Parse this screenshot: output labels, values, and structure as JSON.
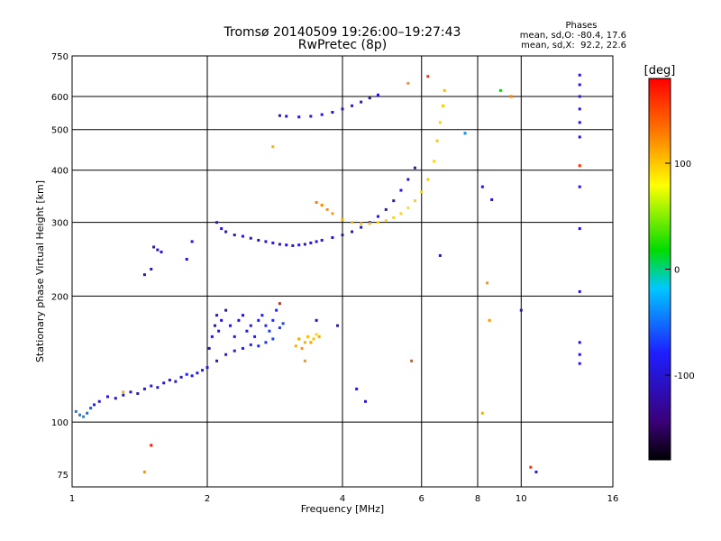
{
  "chart_data": {
    "type": "scatter",
    "title": "Tromsø 20140509 19:26:00–19:27:43",
    "subtitle": "RwPretec (8p)",
    "xlabel": "Frequency [MHz]",
    "ylabel": "Stationary phase Virtual Height [km]",
    "xscale": "log",
    "yscale": "log",
    "xlim": [
      1,
      16
    ],
    "ylim": [
      70,
      750
    ],
    "xticks": [
      1,
      2,
      4,
      6,
      8,
      10,
      16
    ],
    "yticks": [
      75,
      100,
      200,
      300,
      400,
      500,
      600,
      750
    ],
    "grid": true,
    "phases_box": {
      "title": "Phases",
      "line_o": "mean, sd,O: -80.4, 17.6",
      "line_x": "mean, sd,X:  92.2, 22.6"
    },
    "colorbar": {
      "label": "[deg]",
      "range": [
        -180,
        180
      ],
      "ticks": [
        100,
        0,
        -100
      ],
      "colormap": "rainbow",
      "colors": [
        "#000000",
        "#3a0078",
        "#1e1eff",
        "#00c8ff",
        "#00dc00",
        "#ffff00",
        "#ff7800",
        "#ff0000"
      ]
    },
    "series": [
      {
        "points": [
          {
            "x": 1.02,
            "y": 106,
            "p": -45
          },
          {
            "x": 1.04,
            "y": 104,
            "p": -45
          },
          {
            "x": 1.06,
            "y": 103,
            "p": -40
          },
          {
            "x": 1.08,
            "y": 105,
            "p": -50
          },
          {
            "x": 1.1,
            "y": 108,
            "p": -60
          },
          {
            "x": 1.12,
            "y": 110,
            "p": -80
          },
          {
            "x": 1.15,
            "y": 112,
            "p": -90
          },
          {
            "x": 1.2,
            "y": 115,
            "p": -95
          },
          {
            "x": 1.25,
            "y": 114,
            "p": -100
          },
          {
            "x": 1.3,
            "y": 116,
            "p": -95
          },
          {
            "x": 1.35,
            "y": 118,
            "p": -100
          },
          {
            "x": 1.4,
            "y": 117,
            "p": -95
          },
          {
            "x": 1.45,
            "y": 120,
            "p": -100
          },
          {
            "x": 1.5,
            "y": 122,
            "p": -95
          },
          {
            "x": 1.55,
            "y": 121,
            "p": -90
          },
          {
            "x": 1.6,
            "y": 124,
            "p": -95
          },
          {
            "x": 1.65,
            "y": 126,
            "p": -100
          },
          {
            "x": 1.7,
            "y": 125,
            "p": -95
          },
          {
            "x": 1.75,
            "y": 128,
            "p": -90
          },
          {
            "x": 1.8,
            "y": 130,
            "p": -85
          },
          {
            "x": 1.85,
            "y": 129,
            "p": -80
          },
          {
            "x": 1.9,
            "y": 131,
            "p": -85
          },
          {
            "x": 1.95,
            "y": 133,
            "p": -90
          },
          {
            "x": 2.0,
            "y": 135,
            "p": -95
          },
          {
            "x": 2.1,
            "y": 140,
            "p": -100
          },
          {
            "x": 2.2,
            "y": 145,
            "p": -95
          },
          {
            "x": 2.3,
            "y": 148,
            "p": -90
          },
          {
            "x": 2.4,
            "y": 150,
            "p": -85
          },
          {
            "x": 2.5,
            "y": 153,
            "p": -80
          },
          {
            "x": 2.6,
            "y": 152,
            "p": -75
          },
          {
            "x": 2.7,
            "y": 155,
            "p": -70
          },
          {
            "x": 2.8,
            "y": 158,
            "p": -65
          }
        ]
      },
      {
        "points": [
          {
            "x": 2.02,
            "y": 150,
            "p": -110
          },
          {
            "x": 2.05,
            "y": 160,
            "p": -105
          },
          {
            "x": 2.08,
            "y": 170,
            "p": -110
          },
          {
            "x": 2.1,
            "y": 180,
            "p": -100
          },
          {
            "x": 2.12,
            "y": 165,
            "p": -95
          },
          {
            "x": 2.15,
            "y": 175,
            "p": -105
          },
          {
            "x": 2.2,
            "y": 185,
            "p": -110
          },
          {
            "x": 2.25,
            "y": 170,
            "p": -100
          },
          {
            "x": 2.3,
            "y": 160,
            "p": -95
          },
          {
            "x": 2.35,
            "y": 175,
            "p": -105
          },
          {
            "x": 2.4,
            "y": 180,
            "p": -100
          },
          {
            "x": 2.45,
            "y": 165,
            "p": -90
          },
          {
            "x": 2.5,
            "y": 170,
            "p": -85
          },
          {
            "x": 2.55,
            "y": 160,
            "p": -80
          },
          {
            "x": 2.6,
            "y": 175,
            "p": -85
          },
          {
            "x": 2.65,
            "y": 180,
            "p": -80
          },
          {
            "x": 2.7,
            "y": 170,
            "p": -75
          },
          {
            "x": 2.75,
            "y": 165,
            "p": -70
          },
          {
            "x": 2.8,
            "y": 175,
            "p": -75
          },
          {
            "x": 2.85,
            "y": 185,
            "p": -80
          },
          {
            "x": 2.9,
            "y": 168,
            "p": -70
          },
          {
            "x": 2.95,
            "y": 172,
            "p": -65
          }
        ]
      },
      {
        "points": [
          {
            "x": 3.15,
            "y": 152,
            "p": 110
          },
          {
            "x": 3.2,
            "y": 158,
            "p": 115
          },
          {
            "x": 3.25,
            "y": 150,
            "p": 120
          },
          {
            "x": 3.3,
            "y": 155,
            "p": 110
          },
          {
            "x": 3.35,
            "y": 160,
            "p": 105
          },
          {
            "x": 3.4,
            "y": 155,
            "p": 115
          },
          {
            "x": 3.45,
            "y": 158,
            "p": 100
          },
          {
            "x": 3.5,
            "y": 162,
            "p": 95
          },
          {
            "x": 3.55,
            "y": 160,
            "p": 110
          }
        ]
      },
      {
        "points": [
          {
            "x": 2.1,
            "y": 300,
            "p": -95
          },
          {
            "x": 2.15,
            "y": 290,
            "p": -100
          },
          {
            "x": 2.2,
            "y": 285,
            "p": -105
          },
          {
            "x": 2.3,
            "y": 280,
            "p": -100
          },
          {
            "x": 2.4,
            "y": 278,
            "p": -95
          },
          {
            "x": 2.5,
            "y": 275,
            "p": -100
          },
          {
            "x": 2.6,
            "y": 272,
            "p": -105
          },
          {
            "x": 2.7,
            "y": 270,
            "p": -100
          },
          {
            "x": 2.8,
            "y": 268,
            "p": -95
          },
          {
            "x": 2.9,
            "y": 266,
            "p": -100
          },
          {
            "x": 3.0,
            "y": 265,
            "p": -105
          },
          {
            "x": 3.1,
            "y": 264,
            "p": -100
          },
          {
            "x": 3.2,
            "y": 265,
            "p": -95
          },
          {
            "x": 3.3,
            "y": 266,
            "p": -100
          },
          {
            "x": 3.4,
            "y": 268,
            "p": -105
          },
          {
            "x": 3.5,
            "y": 270,
            "p": -100
          },
          {
            "x": 3.6,
            "y": 272,
            "p": -95
          },
          {
            "x": 3.8,
            "y": 276,
            "p": -100
          },
          {
            "x": 4.0,
            "y": 280,
            "p": -100
          },
          {
            "x": 4.2,
            "y": 285,
            "p": -105
          },
          {
            "x": 4.4,
            "y": 292,
            "p": -100
          },
          {
            "x": 4.6,
            "y": 300,
            "p": -95
          },
          {
            "x": 4.8,
            "y": 310,
            "p": -100
          },
          {
            "x": 5.0,
            "y": 322,
            "p": -105
          },
          {
            "x": 5.2,
            "y": 338,
            "p": -100
          },
          {
            "x": 5.4,
            "y": 358,
            "p": -95
          },
          {
            "x": 5.6,
            "y": 380,
            "p": -100
          },
          {
            "x": 5.8,
            "y": 405,
            "p": -105
          }
        ]
      },
      {
        "points": [
          {
            "x": 3.5,
            "y": 335,
            "p": 130
          },
          {
            "x": 3.6,
            "y": 330,
            "p": 125
          },
          {
            "x": 3.7,
            "y": 322,
            "p": 120
          },
          {
            "x": 3.8,
            "y": 315,
            "p": 115
          },
          {
            "x": 4.0,
            "y": 305,
            "p": 110
          },
          {
            "x": 4.2,
            "y": 300,
            "p": 105
          },
          {
            "x": 4.4,
            "y": 298,
            "p": 100
          },
          {
            "x": 4.6,
            "y": 298,
            "p": 100
          },
          {
            "x": 4.8,
            "y": 300,
            "p": 95
          },
          {
            "x": 5.0,
            "y": 303,
            "p": 95
          },
          {
            "x": 5.2,
            "y": 308,
            "p": 95
          },
          {
            "x": 5.4,
            "y": 315,
            "p": 95
          },
          {
            "x": 5.6,
            "y": 325,
            "p": 90
          },
          {
            "x": 5.8,
            "y": 338,
            "p": 95
          },
          {
            "x": 6.0,
            "y": 355,
            "p": 95
          },
          {
            "x": 6.2,
            "y": 380,
            "p": 100
          },
          {
            "x": 6.4,
            "y": 420,
            "p": 95
          },
          {
            "x": 6.5,
            "y": 470,
            "p": 100
          },
          {
            "x": 6.6,
            "y": 520,
            "p": 95
          },
          {
            "x": 6.7,
            "y": 570,
            "p": 100
          },
          {
            "x": 6.75,
            "y": 620,
            "p": 105
          }
        ]
      },
      {
        "points": [
          {
            "x": 2.9,
            "y": 540,
            "p": -100
          },
          {
            "x": 3.0,
            "y": 538,
            "p": -105
          },
          {
            "x": 3.2,
            "y": 536,
            "p": -100
          },
          {
            "x": 3.4,
            "y": 538,
            "p": -95
          },
          {
            "x": 3.6,
            "y": 543,
            "p": -100
          },
          {
            "x": 3.8,
            "y": 550,
            "p": -105
          },
          {
            "x": 4.0,
            "y": 560,
            "p": -100
          },
          {
            "x": 4.2,
            "y": 570,
            "p": -95
          },
          {
            "x": 4.4,
            "y": 582,
            "p": -100
          },
          {
            "x": 4.6,
            "y": 595,
            "p": -105
          },
          {
            "x": 4.8,
            "y": 605,
            "p": -100
          }
        ]
      },
      {
        "points": [
          {
            "x": 1.45,
            "y": 225,
            "p": -105
          },
          {
            "x": 1.5,
            "y": 232,
            "p": -100
          },
          {
            "x": 1.52,
            "y": 262,
            "p": -100
          },
          {
            "x": 1.55,
            "y": 258,
            "p": -105
          },
          {
            "x": 1.58,
            "y": 255,
            "p": -100
          }
        ]
      },
      {
        "points": [
          {
            "x": 13.5,
            "y": 675,
            "p": -100
          },
          {
            "x": 13.5,
            "y": 640,
            "p": -105
          },
          {
            "x": 13.5,
            "y": 600,
            "p": -100
          },
          {
            "x": 13.5,
            "y": 560,
            "p": -95
          },
          {
            "x": 13.5,
            "y": 520,
            "p": -100
          },
          {
            "x": 13.5,
            "y": 480,
            "p": -105
          },
          {
            "x": 13.5,
            "y": 410,
            "p": 160
          },
          {
            "x": 13.5,
            "y": 365,
            "p": -100
          },
          {
            "x": 13.5,
            "y": 290,
            "p": -105
          },
          {
            "x": 13.5,
            "y": 205,
            "p": -100
          },
          {
            "x": 13.5,
            "y": 155,
            "p": -105
          },
          {
            "x": 13.5,
            "y": 145,
            "p": -100
          },
          {
            "x": 13.5,
            "y": 138,
            "p": -95
          }
        ]
      },
      {
        "points": [
          {
            "x": 1.5,
            "y": 88,
            "p": 170
          },
          {
            "x": 1.45,
            "y": 76,
            "p": 120
          },
          {
            "x": 8.2,
            "y": 105,
            "p": 110
          },
          {
            "x": 10.5,
            "y": 78,
            "p": 160
          },
          {
            "x": 10.8,
            "y": 76,
            "p": -100
          },
          {
            "x": 8.4,
            "y": 215,
            "p": 120
          },
          {
            "x": 10.0,
            "y": 185,
            "p": -100
          },
          {
            "x": 8.5,
            "y": 175,
            "p": 120
          },
          {
            "x": 8.2,
            "y": 365,
            "p": -100
          },
          {
            "x": 8.6,
            "y": 340,
            "p": -105
          },
          {
            "x": 9.0,
            "y": 620,
            "p": 20
          },
          {
            "x": 9.5,
            "y": 600,
            "p": 130
          },
          {
            "x": 7.5,
            "y": 490,
            "p": -40
          },
          {
            "x": 6.6,
            "y": 250,
            "p": -100
          },
          {
            "x": 6.2,
            "y": 670,
            "p": 160
          },
          {
            "x": 5.6,
            "y": 645,
            "p": 120
          },
          {
            "x": 3.9,
            "y": 170,
            "p": -100
          },
          {
            "x": 2.8,
            "y": 455,
            "p": 110
          },
          {
            "x": 1.8,
            "y": 245,
            "p": -100
          },
          {
            "x": 1.85,
            "y": 270,
            "p": -95
          },
          {
            "x": 2.9,
            "y": 192,
            "p": 170
          },
          {
            "x": 3.5,
            "y": 175,
            "p": -120
          },
          {
            "x": 3.3,
            "y": 140,
            "p": 120
          },
          {
            "x": 4.3,
            "y": 120,
            "p": -100
          },
          {
            "x": 5.7,
            "y": 140,
            "p": 150
          },
          {
            "x": 4.5,
            "y": 112,
            "p": -100
          },
          {
            "x": 1.3,
            "y": 118,
            "p": 110
          }
        ]
      }
    ]
  }
}
